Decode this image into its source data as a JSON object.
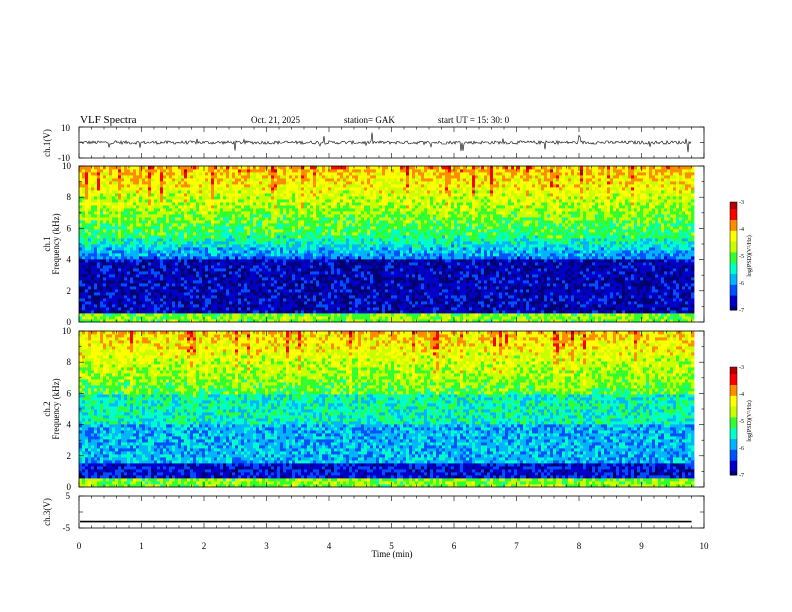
{
  "header": {
    "title": "VLF  Spectra",
    "date": "Oct. 21, 2025",
    "station": "station= GAK",
    "start": "start  UT =    15: 30: 0"
  },
  "chart_data": [
    {
      "type": "line",
      "name": "ch1-waveform",
      "ylabel": "ch.1(V)",
      "ylim": [
        -10,
        10
      ],
      "yticks": [
        "10",
        "-10"
      ],
      "xlim": [
        0,
        10
      ],
      "y_values": [
        -1,
        0,
        1
      ]
    },
    {
      "type": "heatmap",
      "name": "ch1-spectrogram",
      "ylabel": [
        "ch.1",
        "Frequency  (kHz)"
      ],
      "ylim": [
        0,
        10
      ],
      "yticks": [
        "0",
        "2",
        "4",
        "6",
        "8",
        "10"
      ],
      "xlim": [
        0,
        10
      ],
      "colorbar": {
        "label": "log(PSD)(V²/Hz)",
        "ticks": [
          "-3",
          "-4",
          "-5",
          "-6",
          "-7"
        ],
        "range": [
          -7,
          -3
        ]
      }
    },
    {
      "type": "heatmap",
      "name": "ch2-spectrogram",
      "ylabel": [
        "ch.2",
        "Frequency  (kHz)"
      ],
      "ylim": [
        0,
        10
      ],
      "yticks": [
        "0",
        "2",
        "4",
        "6",
        "8",
        "10"
      ],
      "xlim": [
        0,
        10
      ],
      "colorbar": {
        "label": "log(PSD)(V²/Hz)",
        "ticks": [
          "-3",
          "-4",
          "-5",
          "-6",
          "-7"
        ],
        "range": [
          -7,
          -3
        ]
      }
    },
    {
      "type": "line",
      "name": "ch3-waveform",
      "ylabel": "ch.3(V)",
      "ylim": [
        -5,
        5
      ],
      "yticks": [
        "5",
        "-5"
      ],
      "xlim": [
        0,
        10
      ],
      "y_values": [
        -3
      ]
    }
  ],
  "xaxis": {
    "label": "Time  (min)",
    "ticks": [
      "0",
      "1",
      "2",
      "3",
      "4",
      "5",
      "6",
      "7",
      "8",
      "9",
      "10"
    ],
    "data_end": 9.8
  },
  "colors": {
    "colormap": [
      "#00006e",
      "#0000c8",
      "#0050ff",
      "#00b4ff",
      "#00ffc8",
      "#32ff32",
      "#c8ff00",
      "#ffff00",
      "#ff8c00",
      "#ff0000",
      "#b40000"
    ]
  }
}
